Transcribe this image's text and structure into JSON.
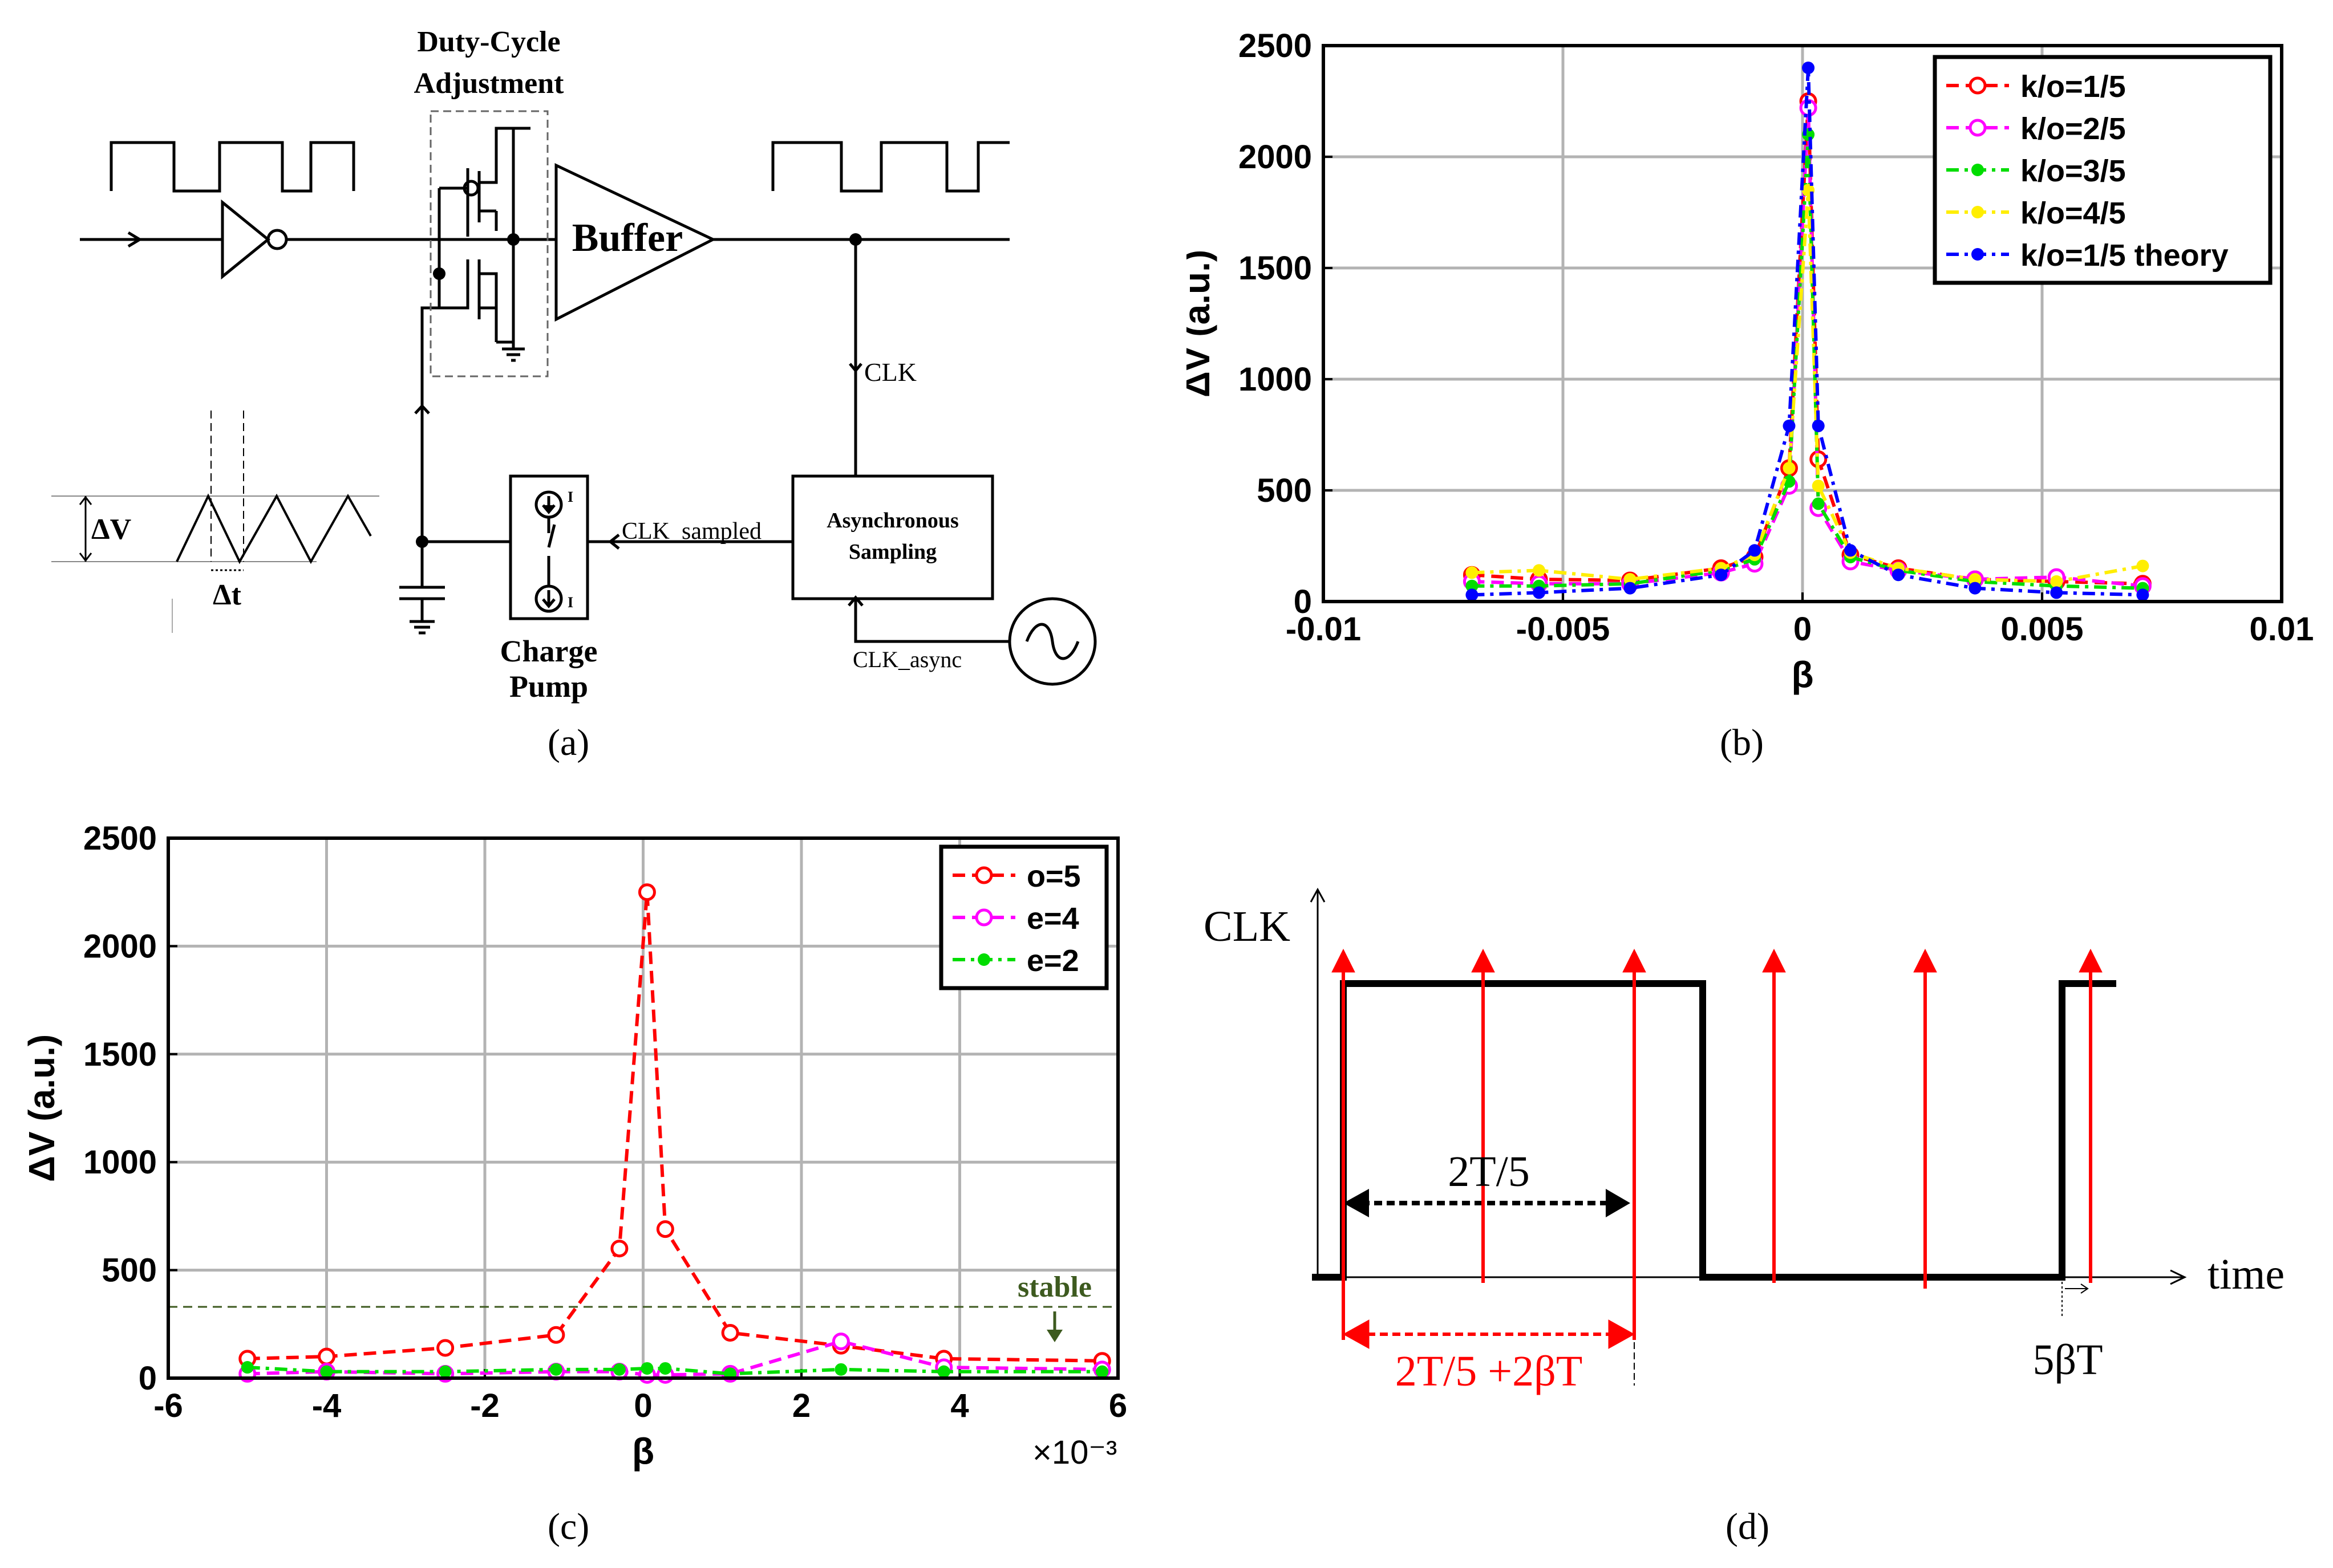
{
  "panels": {
    "a": "(a)",
    "b": "(b)",
    "c": "(c)",
    "d": "(d)"
  },
  "circuit": {
    "duty_cycle_label_1": "Duty-Cycle",
    "duty_cycle_label_2": "Adjustment",
    "buffer_label": "Buffer",
    "clk_label": "CLK",
    "clk_sampled_label": "CLK_sampled",
    "async_label_1": "Asynchronous",
    "async_label_2": "Sampling",
    "clk_async_label": "CLK_async",
    "charge_pump_label_1": "Charge",
    "charge_pump_label_2": "Pump",
    "current_symbol": "I",
    "delta_v_label": "ΔV",
    "delta_t_label": "Δt"
  },
  "timing": {
    "y_label": "CLK",
    "x_label": "time",
    "span1_label": "2T/5",
    "span2_label": "2T/5 +2βT",
    "offset_label": "5βT"
  },
  "colors": {
    "red": "#ff0000",
    "magenta": "#ff00ff",
    "green": "#00dd00",
    "yellow": "#ffee00",
    "blue": "#0000ff",
    "grid": "#b3b3b3",
    "stable": "#3d5a1f"
  },
  "chart_data": [
    {
      "id": "b",
      "type": "line",
      "title": "",
      "xlabel": "β",
      "ylabel": "ΔV (a.u.)",
      "xlim": [
        -0.01,
        0.01
      ],
      "ylim": [
        0,
        2500
      ],
      "x_ticks": [
        -0.01,
        -0.005,
        0,
        0.005,
        0.01
      ],
      "x_tick_labels": [
        "-0.01",
        "-0.005",
        "0",
        "0.005",
        "0.01"
      ],
      "y_ticks": [
        0,
        500,
        1000,
        1500,
        2000,
        2500
      ],
      "y_tick_labels": [
        "0",
        "500",
        "1000",
        "1500",
        "2000",
        "2500"
      ],
      "grid": true,
      "legend_position": "top-right",
      "series": [
        {
          "name": "k/o=1/5",
          "color": "#ff0000",
          "marker": "open-circle",
          "dash": "dashed",
          "x": [
            -0.0069,
            -0.0055,
            -0.0036,
            -0.0017,
            -0.001,
            -0.00028,
            0.00012,
            0.00033,
            0.001,
            0.002,
            0.0036,
            0.0053,
            0.0071
          ],
          "y": [
            120,
            100,
            95,
            150,
            200,
            600,
            2250,
            640,
            210,
            150,
            100,
            90,
            80
          ]
        },
        {
          "name": "k/o=2/5",
          "color": "#ff00ff",
          "marker": "open-circle",
          "dash": "dashed",
          "x": [
            -0.0069,
            -0.0055,
            -0.0036,
            -0.0017,
            -0.001,
            -0.00028,
            0.00012,
            0.00033,
            0.001,
            0.002,
            0.0036,
            0.0053,
            0.0071
          ],
          "y": [
            90,
            80,
            80,
            130,
            170,
            520,
            2220,
            420,
            180,
            140,
            100,
            110,
            70
          ]
        },
        {
          "name": "k/o=3/5",
          "color": "#00dd00",
          "marker": "dot",
          "dash": "dashdot",
          "x": [
            -0.0069,
            -0.0055,
            -0.0036,
            -0.0017,
            -0.001,
            -0.00028,
            0.00012,
            0.00033,
            0.001,
            0.002,
            0.0036,
            0.0053,
            0.0071
          ],
          "y": [
            70,
            70,
            80,
            140,
            190,
            540,
            2100,
            440,
            200,
            140,
            90,
            70,
            60
          ]
        },
        {
          "name": "k/o=4/5",
          "color": "#ffee00",
          "marker": "dot",
          "dash": "dashdot",
          "x": [
            -0.0069,
            -0.0055,
            -0.0036,
            -0.0017,
            -0.001,
            -0.00028,
            0.00012,
            0.00033,
            0.001,
            0.002,
            0.0036,
            0.0053,
            0.0071
          ],
          "y": [
            130,
            140,
            100,
            150,
            210,
            600,
            1850,
            520,
            220,
            150,
            100,
            90,
            160
          ]
        },
        {
          "name": "k/o=1/5 theory",
          "color": "#0000ff",
          "marker": "dot",
          "dash": "dashdot",
          "x": [
            -0.0069,
            -0.0055,
            -0.0036,
            -0.0017,
            -0.001,
            -0.00028,
            0.00012,
            0.00033,
            0.001,
            0.002,
            0.0036,
            0.0053,
            0.0071
          ],
          "y": [
            30,
            40,
            60,
            120,
            230,
            790,
            2400,
            790,
            230,
            120,
            60,
            40,
            30
          ]
        }
      ]
    },
    {
      "id": "c",
      "type": "line",
      "title": "",
      "xlabel": "β",
      "ylabel": "ΔV (a.u.)",
      "x_multiplier": "×10⁻³",
      "xlim": [
        -6,
        6
      ],
      "ylim": [
        0,
        2500
      ],
      "x_ticks": [
        -6,
        -4,
        -2,
        0,
        2,
        4,
        6
      ],
      "x_tick_labels": [
        "-6",
        "-4",
        "-2",
        "0",
        "2",
        "4",
        "6"
      ],
      "y_ticks": [
        0,
        500,
        1000,
        1500,
        2000,
        2500
      ],
      "y_tick_labels": [
        "0",
        "500",
        "1000",
        "1500",
        "2000",
        "2500"
      ],
      "grid": true,
      "legend_position": "top-right",
      "annotation": {
        "text": "stable",
        "threshold": 330,
        "arrow_x": 5.2
      },
      "series": [
        {
          "name": "o=5",
          "color": "#ff0000",
          "marker": "open-circle",
          "dash": "dashed",
          "x": [
            -5,
            -4,
            -2.5,
            -1.1,
            -0.3,
            0.05,
            0.28,
            1.1,
            2.5,
            3.8,
            5.8
          ],
          "y": [
            90,
            100,
            140,
            200,
            600,
            2250,
            690,
            210,
            150,
            90,
            80
          ]
        },
        {
          "name": "e=4",
          "color": "#ff00ff",
          "marker": "open-circle",
          "dash": "dashed",
          "x": [
            -5,
            -4,
            -2.5,
            -1.1,
            -0.3,
            0.05,
            0.28,
            1.1,
            2.5,
            3.8,
            5.8
          ],
          "y": [
            20,
            30,
            20,
            30,
            30,
            15,
            15,
            20,
            170,
            50,
            40
          ]
        },
        {
          "name": "e=2",
          "color": "#00dd00",
          "marker": "dot",
          "dash": "dashdot",
          "x": [
            -5,
            -4,
            -2.5,
            -1.1,
            -0.3,
            0.05,
            0.28,
            1.1,
            2.5,
            3.8,
            5.8
          ],
          "y": [
            50,
            30,
            30,
            40,
            40,
            45,
            45,
            20,
            40,
            30,
            30
          ]
        }
      ]
    }
  ]
}
